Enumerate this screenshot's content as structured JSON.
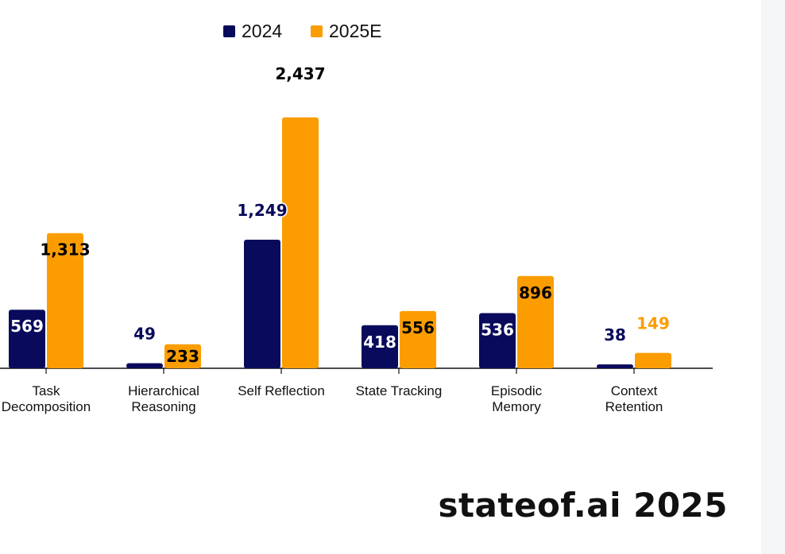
{
  "chart_data": {
    "type": "bar",
    "categories": [
      [
        "Task",
        "Decomposition"
      ],
      [
        "Hierarchical",
        "Reasoning"
      ],
      [
        "Self Reflection"
      ],
      [
        "State Tracking"
      ],
      [
        "Episodic",
        "Memory"
      ],
      [
        "Context",
        "Retention"
      ]
    ],
    "series": [
      {
        "name": "2024",
        "color": "#0a0a5c",
        "values": [
          569,
          49,
          1249,
          418,
          536,
          38
        ],
        "labels": [
          "569",
          "49",
          "1,249",
          "418",
          "536",
          "38"
        ]
      },
      {
        "name": "2025E",
        "color": "#fb9d00",
        "values": [
          1313,
          233,
          2437,
          556,
          896,
          149
        ],
        "labels": [
          "1,313",
          "233",
          "2,437",
          "556",
          "896",
          "149"
        ]
      }
    ],
    "ylim": [
      0,
      2800
    ],
    "legend": "top-center",
    "grid": false
  },
  "brand": "stateof.ai 2025"
}
